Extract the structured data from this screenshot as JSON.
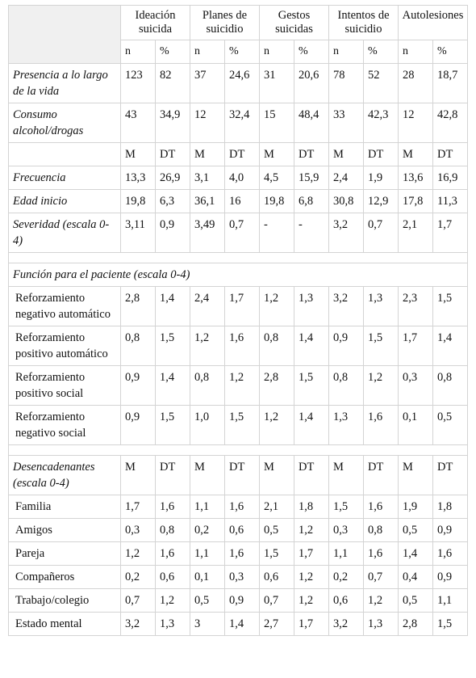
{
  "header": {
    "groups": [
      "Ideación suicida",
      "Planes de suicidio",
      "Gestos suicidas",
      "Intentos de suicidio",
      "Autolesiones"
    ],
    "subheaders": [
      "n",
      "%",
      "n",
      "%",
      "n",
      "%",
      "n",
      "%",
      "n",
      "%"
    ]
  },
  "rows_top": [
    {
      "label": "Presencia a lo largo de la vida",
      "values": [
        "123",
        "82",
        "37",
        "24,6",
        "31",
        "20,6",
        "78",
        "52",
        "28",
        "18,7"
      ]
    },
    {
      "label": "Consumo alcohol/drogas",
      "values": [
        "43",
        "34,9",
        "12",
        "32,4",
        "15",
        "48,4",
        "33",
        "42,3",
        "12",
        "42,8"
      ]
    }
  ],
  "md_header": [
    "M",
    "DT",
    "M",
    "DT",
    "M",
    "DT",
    "M",
    "DT",
    "M",
    "DT"
  ],
  "rows_md": [
    {
      "label": "Frecuencia",
      "values": [
        "13,3",
        "26,9",
        "3,1",
        "4,0",
        "4,5",
        "15,9",
        "2,4",
        "1,9",
        "13,6",
        "16,9"
      ]
    },
    {
      "label": "Edad inicio",
      "values": [
        "19,8",
        "6,3",
        "36,1",
        "16",
        "19,8",
        "6,8",
        "30,8",
        "12,9",
        "17,8",
        "11,3"
      ]
    },
    {
      "label": "Severidad (escala 0-4)",
      "values": [
        "3,11",
        "0,9",
        "3,49",
        "0,7",
        "-",
        "-",
        "3,2",
        "0,7",
        "2,1",
        "1,7"
      ]
    }
  ],
  "funcion_title": "Función para el paciente (escala 0-4)",
  "rows_funcion": [
    {
      "label": "Reforzamiento negativo automático",
      "values": [
        "2,8",
        "1,4",
        "2,4",
        "1,7",
        "1,2",
        "1,3",
        "3,2",
        "1,3",
        "2,3",
        "1,5"
      ]
    },
    {
      "label": "Reforzamiento positivo automático",
      "values": [
        "0,8",
        "1,5",
        "1,2",
        "1,6",
        "0,8",
        "1,4",
        "0,9",
        "1,5",
        "1,7",
        "1,4"
      ]
    },
    {
      "label": "Reforzamiento positivo social",
      "values": [
        "0,9",
        "1,4",
        "0,8",
        "1,2",
        "2,8",
        "1,5",
        "0,8",
        "1,2",
        "0,3",
        "0,8"
      ]
    },
    {
      "label": "Reforzamiento negativo social",
      "values": [
        "0,9",
        "1,5",
        "1,0",
        "1,5",
        "1,2",
        "1,4",
        "1,3",
        "1,6",
        "0,1",
        "0,5"
      ]
    }
  ],
  "desencadenantes_label": "Desencadenantes (escala 0-4)",
  "desencadenantes_header": [
    "M",
    "DT",
    "M",
    "DT",
    "M",
    "DT",
    "M",
    "DT",
    "M",
    "DT"
  ],
  "rows_desencadenantes": [
    {
      "label": "Familia",
      "values": [
        "1,7",
        "1,6",
        "1,1",
        "1,6",
        "2,1",
        "1,8",
        "1,5",
        "1,6",
        "1,9",
        "1,8"
      ]
    },
    {
      "label": "Amigos",
      "values": [
        "0,3",
        "0,8",
        "0,2",
        "0,6",
        "0,5",
        "1,2",
        "0,3",
        "0,8",
        "0,5",
        "0,9"
      ]
    },
    {
      "label": "Pareja",
      "values": [
        "1,2",
        "1,6",
        "1,1",
        "1,6",
        "1,5",
        "1,7",
        "1,1",
        "1,6",
        "1,4",
        "1,6"
      ]
    },
    {
      "label": "Compañeros",
      "values": [
        "0,2",
        "0,6",
        "0,1",
        "0,3",
        "0,6",
        "1,2",
        "0,2",
        "0,7",
        "0,4",
        "0,9"
      ]
    },
    {
      "label": "Trabajo/colegio",
      "values": [
        "0,7",
        "1,2",
        "0,5",
        "0,9",
        "0,7",
        "1,2",
        "0,6",
        "1,2",
        "0,5",
        "1,1"
      ]
    },
    {
      "label": "Estado mental",
      "values": [
        "3,2",
        "1,3",
        "3",
        "1,4",
        "2,7",
        "1,7",
        "3,2",
        "1,3",
        "2,8",
        "1,5"
      ]
    }
  ]
}
